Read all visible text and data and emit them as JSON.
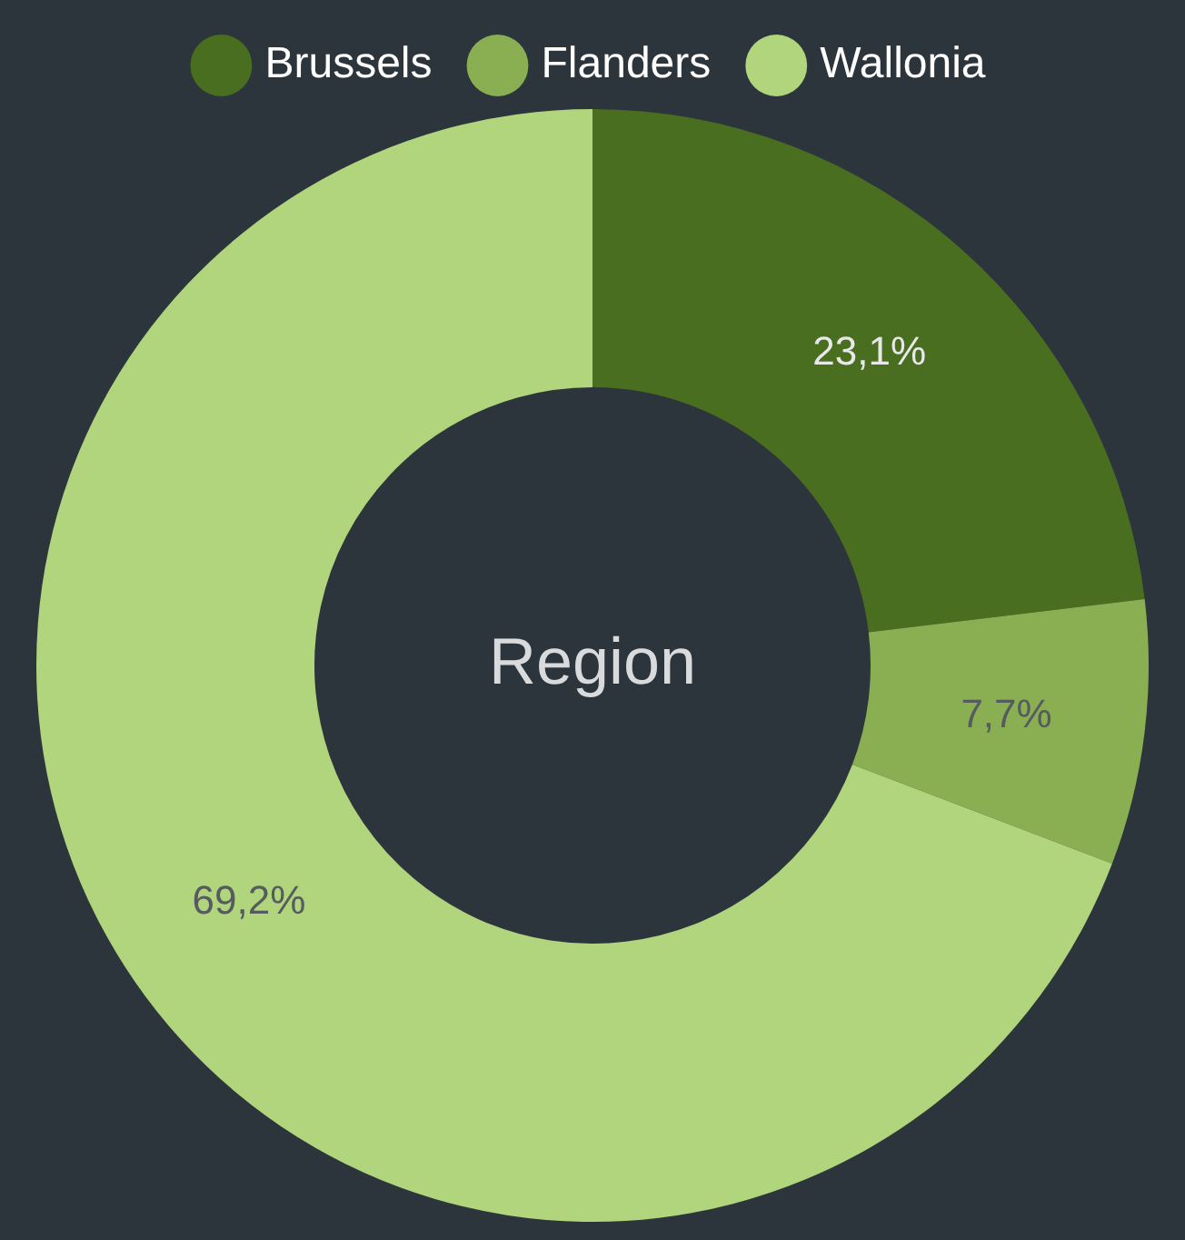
{
  "chart_data": {
    "type": "donut",
    "title": "Region",
    "categories": [
      "Brussels",
      "Flanders",
      "Wallonia"
    ],
    "values": [
      23.1,
      7.7,
      69.2
    ],
    "colors": [
      "#4a6e1f",
      "#8aaf52",
      "#b1d57d"
    ],
    "value_labels": [
      "23,1%",
      "7,7%",
      "69,2%"
    ],
    "legend": "top"
  }
}
